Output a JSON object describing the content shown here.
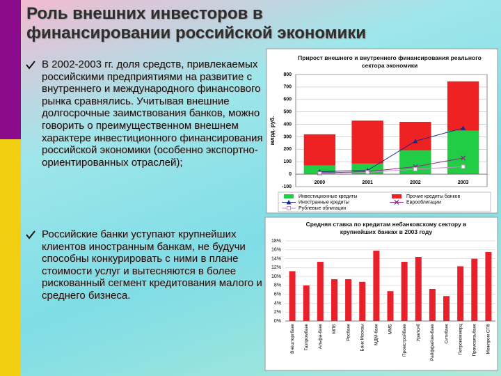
{
  "slide": {
    "title": [
      "Роль внешних инвесторов в",
      "финансировании российской экономики"
    ],
    "bullets": [
      "В 2002-2003 гг. доля средств, привлекаемых российскими предприятиями на развитие с внутреннего и международного финансового рынка сравнялись. Учитывая внешние долгосрочные заимствования банков, можно говорить о преимущественном внешнем характере инвестиционного финансирования российской экономики (особенно экспортно-ориентированных отраслей);",
      "Российские банки уступают крупнейших клиентов иностранным банкам, не будучи способны конкурировать с ними в плане стоимости услуг и вытесняются в более рискованный сегмент кредитования малого и среднего бизнеса."
    ]
  },
  "chart_data": [
    {
      "type": "combo",
      "title": "Прирост внешнего и внутреннего финансирования реального сектора экономики",
      "y_label": "млрд. руб.",
      "categories": [
        "2000",
        "2001",
        "2002",
        "2003"
      ],
      "ylim": [
        -100,
        800
      ],
      "yticks": [
        -100,
        0,
        100,
        200,
        300,
        400,
        500,
        600,
        700,
        800
      ],
      "grid": true,
      "stacked": true,
      "series": [
        {
          "name": "Инвестиционные кредиты",
          "type": "bar",
          "color": "#22cc44",
          "values": [
            70,
            85,
            190,
            350
          ]
        },
        {
          "name": "Прочие кредиты банков",
          "type": "bar",
          "color": "#ee2222",
          "values": [
            250,
            345,
            230,
            395
          ]
        },
        {
          "name": "Иностранные кредиты",
          "type": "line",
          "marker": "triangle",
          "color": "#1a2a8a",
          "values": [
            20,
            30,
            265,
            370
          ]
        },
        {
          "name": "Еврооблигации",
          "type": "line",
          "marker": "x",
          "color": "#8a2a8a",
          "values": [
            10,
            20,
            60,
            130
          ]
        },
        {
          "name": "Рублевые облигации",
          "type": "line",
          "marker": "square",
          "color": "#c890c8",
          "values": [
            5,
            15,
            40,
            60
          ]
        }
      ]
    },
    {
      "type": "bar",
      "title": "Средняя ставка по кредитам небанковскому сектору в крупнейших банках в 2003 году",
      "categories": [
        "Внешторгбанк",
        "Газпромбанк",
        "Альфа-банк",
        "МПБ",
        "Росбанк",
        "Банк Москвы",
        "МДМ-банк",
        "ММБ",
        "Промстройбанк",
        "Уралсиб",
        "Райффайзенбанк",
        "Ситибанк",
        "Петрокоммерц",
        "Промсвязьбанк",
        "Межпром СПб"
      ],
      "values": [
        11.2,
        8,
        13.3,
        9.4,
        9.4,
        8.8,
        15.8,
        6.7,
        13.3,
        14.4,
        7.2,
        5.6,
        12.3,
        14,
        15.5
      ],
      "color": "#e8202a",
      "ylim": [
        0,
        18
      ],
      "yticks": [
        {
          "value": 0,
          "label": "0%"
        },
        {
          "value": 2,
          "label": "2%"
        },
        {
          "value": 4,
          "label": "4%"
        },
        {
          "value": 6,
          "label": "6%"
        },
        {
          "value": 8,
          "label": "8%"
        },
        {
          "value": 10,
          "label": "10%"
        },
        {
          "value": 12,
          "label": "12%"
        },
        {
          "value": 14,
          "label": "14%"
        },
        {
          "value": 16,
          "label": "16%"
        },
        {
          "value": 18,
          "label": "18%"
        }
      ],
      "grid": true
    }
  ]
}
